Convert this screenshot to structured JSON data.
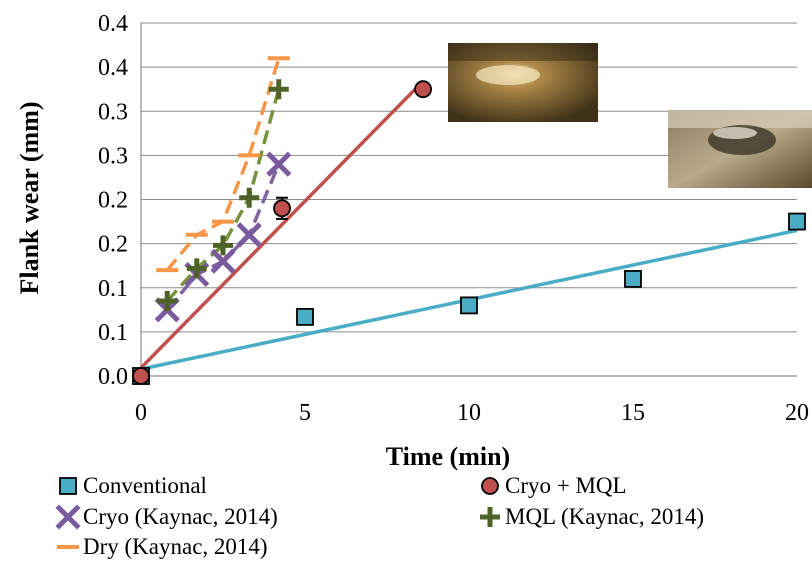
{
  "chart_data": {
    "type": "scatter",
    "xlabel": "Time (min)",
    "ylabel": "Flank wear (mm)",
    "xlim": [
      0,
      20
    ],
    "ylim": [
      0,
      0.4
    ],
    "x_ticks": [
      "0",
      "5",
      "10",
      "15",
      "20"
    ],
    "y_ticks": [
      "0.0",
      "0.1",
      "0.1",
      "0.2",
      "0.2",
      "0.3",
      "0.3",
      "0.4",
      "0.4"
    ],
    "grid": "horizontal",
    "legend_position": "bottom",
    "series": [
      {
        "name": "Conventional",
        "marker": "square",
        "color": "#4bacc6",
        "points": [
          [
            0,
            0.0
          ],
          [
            5,
            0.067
          ],
          [
            10,
            0.08
          ],
          [
            15,
            0.11
          ],
          [
            20,
            0.175
          ]
        ],
        "error_bars": [
          null,
          null,
          null,
          0.006,
          null
        ],
        "trend": "linear",
        "trend_color": "#4bacc6"
      },
      {
        "name": "Cryo + MQL",
        "marker": "circle",
        "color": "#c0504d",
        "points": [
          [
            0,
            0.0
          ],
          [
            4.3,
            0.19
          ],
          [
            8.6,
            0.325
          ]
        ],
        "error_bars": [
          null,
          0.012,
          null
        ],
        "trend": "linear",
        "trend_color": "#c0504d"
      },
      {
        "name": "Cryo (Kaynac, 2014)",
        "marker": "x",
        "color": "#7a5b9e",
        "points": [
          [
            0.8,
            0.075
          ],
          [
            1.7,
            0.115
          ],
          [
            2.5,
            0.13
          ],
          [
            3.3,
            0.16
          ],
          [
            4.2,
            0.24
          ]
        ],
        "trend": "dashed",
        "trend_color": "#8064a2"
      },
      {
        "name": "MQL (Kaynac, 2014)",
        "marker": "plus",
        "color": "#4f6228",
        "points": [
          [
            0.8,
            0.085
          ],
          [
            1.7,
            0.122
          ],
          [
            2.5,
            0.148
          ],
          [
            3.3,
            0.202
          ],
          [
            4.2,
            0.325
          ]
        ],
        "trend": "dashed",
        "trend_color": "#77933c"
      },
      {
        "name": "Dry (Kaynac, 2014)",
        "marker": "dash",
        "color": "#f79646",
        "points": [
          [
            0.8,
            0.12
          ],
          [
            1.7,
            0.16
          ],
          [
            2.5,
            0.175
          ],
          [
            3.3,
            0.25
          ],
          [
            4.2,
            0.36
          ]
        ],
        "trend": "dashed",
        "trend_color": "#f79646"
      }
    ],
    "insets": [
      {
        "name": "wear-photo-1",
        "near": "Cryo + MQL end point"
      },
      {
        "name": "wear-photo-2",
        "near": "upper right"
      }
    ]
  }
}
